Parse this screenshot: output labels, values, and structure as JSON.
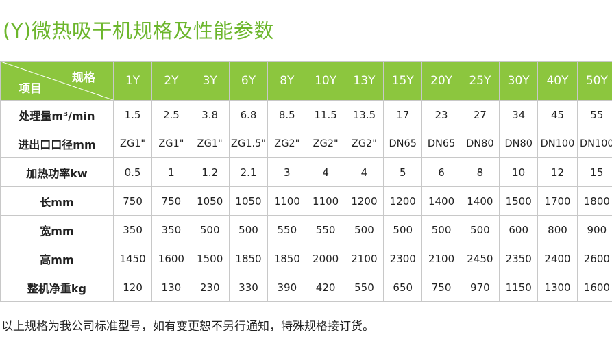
{
  "title": "(Y)微热吸干机规格及性能参数",
  "header": {
    "corner_top": "规格",
    "corner_bottom": "项目",
    "models": [
      "1Y",
      "2Y",
      "3Y",
      "6Y",
      "8Y",
      "10Y",
      "13Y",
      "15Y",
      "20Y",
      "25Y",
      "30Y",
      "40Y",
      "50Y"
    ]
  },
  "rows": [
    {
      "label": "处理量m³/min",
      "values": [
        "1.5",
        "2.5",
        "3.8",
        "6.8",
        "8.5",
        "11.5",
        "13.5",
        "17",
        "23",
        "27",
        "34",
        "45",
        "55"
      ]
    },
    {
      "label": "进出口口径mm",
      "values": [
        "ZG1\"",
        "ZG1\"",
        "ZG1\"",
        "ZG1.5\"",
        "ZG2\"",
        "ZG2\"",
        "ZG2\"",
        "DN65",
        "DN65",
        "DN80",
        "DN80",
        "DN100",
        "DN100"
      ]
    },
    {
      "label": "加热功率kw",
      "values": [
        "0.5",
        "1",
        "1.2",
        "2.1",
        "3",
        "4",
        "4",
        "5",
        "6",
        "8",
        "10",
        "12",
        "15"
      ]
    },
    {
      "label": "长mm",
      "values": [
        "750",
        "750",
        "1050",
        "1050",
        "1100",
        "1100",
        "1200",
        "1200",
        "1400",
        "1400",
        "1500",
        "1700",
        "1800"
      ]
    },
    {
      "label": "宽mm",
      "values": [
        "350",
        "350",
        "500",
        "500",
        "550",
        "550",
        "500",
        "500",
        "500",
        "500",
        "600",
        "800",
        "900"
      ]
    },
    {
      "label": "高mm",
      "values": [
        "1450",
        "1600",
        "1500",
        "1850",
        "1850",
        "2000",
        "2100",
        "2300",
        "2100",
        "2450",
        "2350",
        "2400",
        "2600"
      ]
    },
    {
      "label": "整机净重kg",
      "values": [
        "120",
        "130",
        "230",
        "330",
        "390",
        "420",
        "550",
        "650",
        "750",
        "970",
        "1150",
        "1300",
        "1600"
      ]
    }
  ],
  "note": "以上规格为我公司标准型号，如有变更恕不另行通知，特殊规格接订货。",
  "colors": {
    "accent": "#8cc63e",
    "title": "#6cb62c"
  }
}
